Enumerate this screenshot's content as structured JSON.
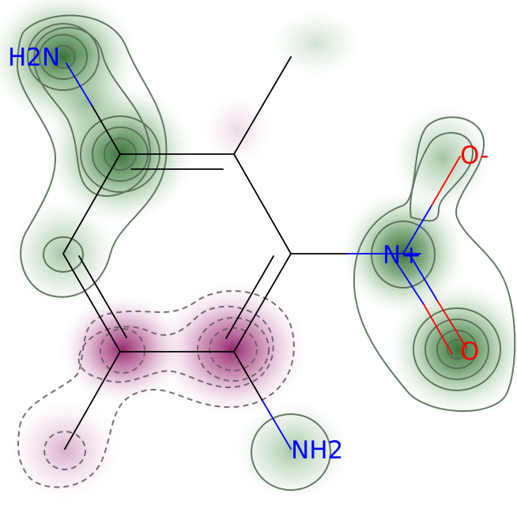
{
  "molecule": {
    "atoms": [
      {
        "id": "n_amine1",
        "label": "H2N",
        "color": "#0000ff"
      },
      {
        "id": "n_nitro",
        "label": "N+",
        "color": "#0000ff"
      },
      {
        "id": "o_minus",
        "label": "O-",
        "color": "#ff0000"
      },
      {
        "id": "o_double",
        "label": "O",
        "color": "#ff0000"
      },
      {
        "id": "n_amine2",
        "label": "NH2",
        "color": "#0000ff"
      }
    ],
    "colors": {
      "positive_contour": "#2e6b2e",
      "negative_contour": "#8a1f63",
      "bond": "#000000"
    }
  }
}
